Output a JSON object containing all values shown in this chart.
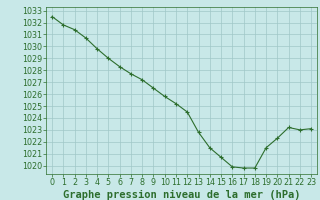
{
  "x": [
    0,
    1,
    2,
    3,
    4,
    5,
    6,
    7,
    8,
    9,
    10,
    11,
    12,
    13,
    14,
    15,
    16,
    17,
    18,
    19,
    20,
    21,
    22,
    23
  ],
  "y": [
    1032.5,
    1031.8,
    1031.4,
    1030.7,
    1029.8,
    1029.0,
    1028.3,
    1027.7,
    1027.2,
    1026.5,
    1025.8,
    1025.2,
    1024.5,
    1022.8,
    1021.5,
    1020.7,
    1019.9,
    1019.8,
    1019.8,
    1021.5,
    1022.3,
    1023.2,
    1023.0,
    1023.1
  ],
  "xlabel": "Graphe pression niveau de la mer (hPa)",
  "xlim": [
    -0.5,
    23.5
  ],
  "ylim": [
    1019.3,
    1033.3
  ],
  "yticks": [
    1020,
    1021,
    1022,
    1023,
    1024,
    1025,
    1026,
    1027,
    1028,
    1029,
    1030,
    1031,
    1032,
    1033
  ],
  "xticks": [
    0,
    1,
    2,
    3,
    4,
    5,
    6,
    7,
    8,
    9,
    10,
    11,
    12,
    13,
    14,
    15,
    16,
    17,
    18,
    19,
    20,
    21,
    22,
    23
  ],
  "line_color": "#2d6e2d",
  "marker": "+",
  "bg_color": "#c8e8e8",
  "grid_color": "#a0c8c8",
  "xlabel_color": "#2d6e2d",
  "tick_color": "#2d6e2d",
  "xlabel_fontsize": 7.5,
  "tick_fontsize": 5.8
}
